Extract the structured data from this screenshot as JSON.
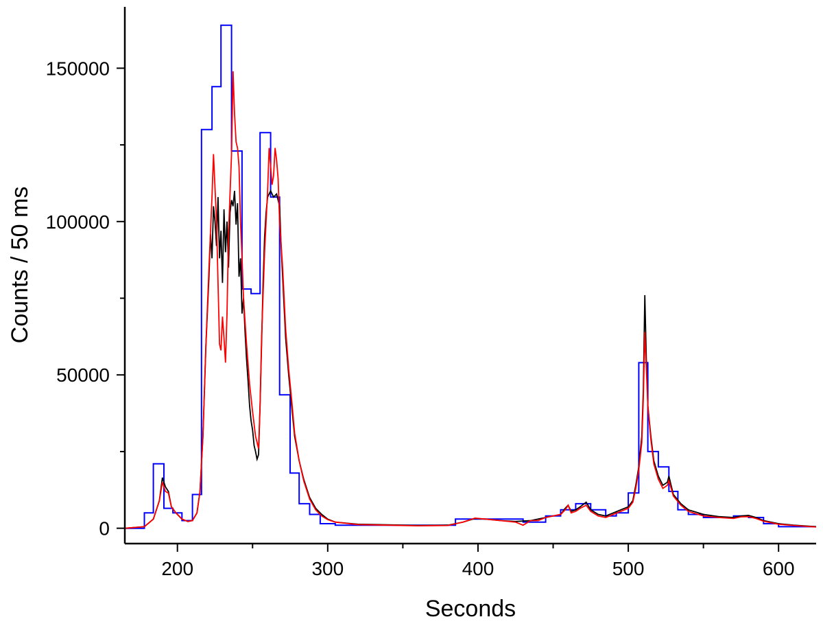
{
  "chart_data": {
    "type": "line",
    "title": "",
    "xlabel": "Seconds",
    "ylabel": "Counts / 50 ms",
    "xlim": [
      165,
      625
    ],
    "ylim": [
      -5000,
      170000
    ],
    "x_ticks": [
      200,
      300,
      400,
      500,
      600
    ],
    "x_tick_labels": [
      "200",
      "300",
      "400",
      "500",
      "600"
    ],
    "x_minor_ticks": [
      250,
      350,
      450,
      550
    ],
    "y_ticks": [
      0,
      50000,
      100000,
      150000
    ],
    "y_tick_labels": [
      "0",
      "50000",
      "100000",
      "150000"
    ],
    "y_minor_ticks": [
      25000,
      75000,
      125000
    ],
    "grid": false,
    "legend": "none",
    "series": [
      {
        "color": "#0000ff",
        "style": "step",
        "edges": [
          165,
          178,
          184,
          191,
          197,
          203,
          210,
          216,
          223,
          229,
          236,
          243,
          249,
          255,
          262,
          268,
          275,
          281,
          288,
          295,
          305,
          335,
          385,
          400,
          430,
          445,
          455,
          465,
          475,
          485,
          492,
          500,
          507,
          513,
          520,
          527,
          533,
          540,
          550,
          570,
          580,
          590,
          600,
          625
        ],
        "values": [
          0,
          5000,
          21000,
          6500,
          5000,
          2500,
          11000,
          130000,
          144000,
          164000,
          123000,
          78000,
          76500,
          129000,
          108000,
          43500,
          18000,
          8000,
          4500,
          1500,
          1000,
          1000,
          3000,
          3000,
          2000,
          4000,
          6000,
          8000,
          6000,
          4000,
          5000,
          11500,
          54000,
          25000,
          20000,
          12000,
          6000,
          4500,
          3500,
          4000,
          3500,
          1500,
          500
        ]
      },
      {
        "color": "#000000",
        "style": "line",
        "points": [
          [
            165,
            0
          ],
          [
            178,
            500
          ],
          [
            184,
            3000
          ],
          [
            188,
            9000
          ],
          [
            190,
            16500
          ],
          [
            192,
            13500
          ],
          [
            194,
            12000
          ],
          [
            196,
            7000
          ],
          [
            199,
            5000
          ],
          [
            203,
            3000
          ],
          [
            207,
            2200
          ],
          [
            210,
            2500
          ],
          [
            213,
            5000
          ],
          [
            215,
            12000
          ],
          [
            217,
            30000
          ],
          [
            219,
            60000
          ],
          [
            221,
            82000
          ],
          [
            222,
            96000
          ],
          [
            223,
            88000
          ],
          [
            224,
            105000
          ],
          [
            225,
            100000
          ],
          [
            226,
            92000
          ],
          [
            227,
            108000
          ],
          [
            228,
            88000
          ],
          [
            229,
            97000
          ],
          [
            230,
            80000
          ],
          [
            231,
            104000
          ],
          [
            232,
            90000
          ],
          [
            233,
            100000
          ],
          [
            234,
            85000
          ],
          [
            235,
            103000
          ],
          [
            236,
            107000
          ],
          [
            237,
            105000
          ],
          [
            238,
            110000
          ],
          [
            239,
            99000
          ],
          [
            240,
            106000
          ],
          [
            241,
            82000
          ],
          [
            242,
            88000
          ],
          [
            243,
            70000
          ],
          [
            244,
            75000
          ],
          [
            245,
            64000
          ],
          [
            246,
            55000
          ],
          [
            247,
            48000
          ],
          [
            248,
            40000
          ],
          [
            249,
            35000
          ],
          [
            250,
            32000
          ],
          [
            251,
            27000
          ],
          [
            252,
            25000
          ],
          [
            253,
            22500
          ],
          [
            254,
            24000
          ],
          [
            255,
            40000
          ],
          [
            256,
            60000
          ],
          [
            257,
            80000
          ],
          [
            258,
            95000
          ],
          [
            259,
            103000
          ],
          [
            260,
            108000
          ],
          [
            262,
            110000
          ],
          [
            264,
            108000
          ],
          [
            266,
            109000
          ],
          [
            268,
            105000
          ],
          [
            269,
            92000
          ],
          [
            270,
            82000
          ],
          [
            271,
            72000
          ],
          [
            272,
            62000
          ],
          [
            274,
            50000
          ],
          [
            276,
            40000
          ],
          [
            278,
            30000
          ],
          [
            281,
            22000
          ],
          [
            284,
            16000
          ],
          [
            288,
            10000
          ],
          [
            292,
            6500
          ],
          [
            296,
            4500
          ],
          [
            300,
            3000
          ],
          [
            305,
            2000
          ],
          [
            320,
            1300
          ],
          [
            340,
            1100
          ],
          [
            360,
            900
          ],
          [
            380,
            1000
          ],
          [
            390,
            2000
          ],
          [
            398,
            3200
          ],
          [
            405,
            3000
          ],
          [
            415,
            2500
          ],
          [
            425,
            2200
          ],
          [
            435,
            2500
          ],
          [
            440,
            3000
          ],
          [
            445,
            3500
          ],
          [
            450,
            4000
          ],
          [
            455,
            4500
          ],
          [
            458,
            6500
          ],
          [
            460,
            7500
          ],
          [
            462,
            5500
          ],
          [
            465,
            6000
          ],
          [
            468,
            7000
          ],
          [
            472,
            8500
          ],
          [
            475,
            6000
          ],
          [
            480,
            4500
          ],
          [
            485,
            4000
          ],
          [
            490,
            5000
          ],
          [
            495,
            6000
          ],
          [
            500,
            7000
          ],
          [
            503,
            9000
          ],
          [
            505,
            14000
          ],
          [
            507,
            20000
          ],
          [
            509,
            30000
          ],
          [
            510,
            45000
          ],
          [
            511,
            76000
          ],
          [
            512,
            55000
          ],
          [
            513,
            40000
          ],
          [
            515,
            30000
          ],
          [
            517,
            22000
          ],
          [
            520,
            17000
          ],
          [
            523,
            14000
          ],
          [
            526,
            15000
          ],
          [
            527,
            17000
          ],
          [
            530,
            11000
          ],
          [
            535,
            8000
          ],
          [
            540,
            6000
          ],
          [
            550,
            4500
          ],
          [
            560,
            3800
          ],
          [
            570,
            3500
          ],
          [
            575,
            4000
          ],
          [
            580,
            4200
          ],
          [
            585,
            3500
          ],
          [
            590,
            2500
          ],
          [
            600,
            1500
          ],
          [
            610,
            1000
          ],
          [
            625,
            500
          ]
        ]
      },
      {
        "color": "#ff0000",
        "style": "line",
        "points": [
          [
            165,
            0
          ],
          [
            178,
            500
          ],
          [
            184,
            3000
          ],
          [
            188,
            9000
          ],
          [
            190,
            15000
          ],
          [
            192,
            12000
          ],
          [
            194,
            11500
          ],
          [
            196,
            7000
          ],
          [
            199,
            5000
          ],
          [
            203,
            3000
          ],
          [
            207,
            2200
          ],
          [
            210,
            2500
          ],
          [
            213,
            5000
          ],
          [
            215,
            12000
          ],
          [
            217,
            30000
          ],
          [
            219,
            60000
          ],
          [
            221,
            85000
          ],
          [
            223,
            108000
          ],
          [
            224,
            122000
          ],
          [
            226,
            100000
          ],
          [
            227,
            80000
          ],
          [
            228,
            60000
          ],
          [
            229,
            58000
          ],
          [
            230,
            69000
          ],
          [
            231,
            62000
          ],
          [
            232,
            54000
          ],
          [
            233,
            70000
          ],
          [
            234,
            96000
          ],
          [
            236,
            122000
          ],
          [
            237,
            149000
          ],
          [
            238,
            135000
          ],
          [
            239,
            126000
          ],
          [
            240,
            124000
          ],
          [
            241,
            118000
          ],
          [
            242,
            100000
          ],
          [
            243,
            88000
          ],
          [
            244,
            75000
          ],
          [
            246,
            60000
          ],
          [
            248,
            47000
          ],
          [
            250,
            38000
          ],
          [
            252,
            30000
          ],
          [
            254,
            26000
          ],
          [
            255,
            40000
          ],
          [
            256,
            62000
          ],
          [
            258,
            90000
          ],
          [
            260,
            110000
          ],
          [
            261,
            124000
          ],
          [
            262,
            118000
          ],
          [
            263,
            112000
          ],
          [
            264,
            115000
          ],
          [
            265,
            124000
          ],
          [
            266,
            120000
          ],
          [
            267,
            114000
          ],
          [
            268,
            100000
          ],
          [
            270,
            85000
          ],
          [
            272,
            65000
          ],
          [
            274,
            52000
          ],
          [
            276,
            42000
          ],
          [
            278,
            31000
          ],
          [
            281,
            22000
          ],
          [
            284,
            15500
          ],
          [
            288,
            9500
          ],
          [
            292,
            6000
          ],
          [
            296,
            4000
          ],
          [
            300,
            2800
          ],
          [
            305,
            2000
          ],
          [
            320,
            1200
          ],
          [
            340,
            1000
          ],
          [
            360,
            800
          ],
          [
            380,
            900
          ],
          [
            390,
            2000
          ],
          [
            398,
            3300
          ],
          [
            405,
            3000
          ],
          [
            415,
            2500
          ],
          [
            425,
            2000
          ],
          [
            430,
            1000
          ],
          [
            435,
            2500
          ],
          [
            440,
            2500
          ],
          [
            445,
            3500
          ],
          [
            450,
            4000
          ],
          [
            455,
            4500
          ],
          [
            458,
            6000
          ],
          [
            460,
            7500
          ],
          [
            462,
            5000
          ],
          [
            465,
            5500
          ],
          [
            468,
            6500
          ],
          [
            472,
            7500
          ],
          [
            475,
            5500
          ],
          [
            480,
            4000
          ],
          [
            485,
            3500
          ],
          [
            490,
            4500
          ],
          [
            495,
            5500
          ],
          [
            500,
            6500
          ],
          [
            503,
            8500
          ],
          [
            505,
            13000
          ],
          [
            507,
            19000
          ],
          [
            509,
            28000
          ],
          [
            510,
            42000
          ],
          [
            511,
            64000
          ],
          [
            512,
            52000
          ],
          [
            513,
            40000
          ],
          [
            515,
            29000
          ],
          [
            517,
            21000
          ],
          [
            520,
            16000
          ],
          [
            523,
            13000
          ],
          [
            526,
            14000
          ],
          [
            527,
            15500
          ],
          [
            530,
            10500
          ],
          [
            535,
            7500
          ],
          [
            540,
            5500
          ],
          [
            550,
            4000
          ],
          [
            560,
            3500
          ],
          [
            570,
            3200
          ],
          [
            575,
            3700
          ],
          [
            580,
            3800
          ],
          [
            585,
            3200
          ],
          [
            590,
            2300
          ],
          [
            600,
            1300
          ],
          [
            610,
            900
          ],
          [
            625,
            400
          ]
        ]
      }
    ]
  }
}
